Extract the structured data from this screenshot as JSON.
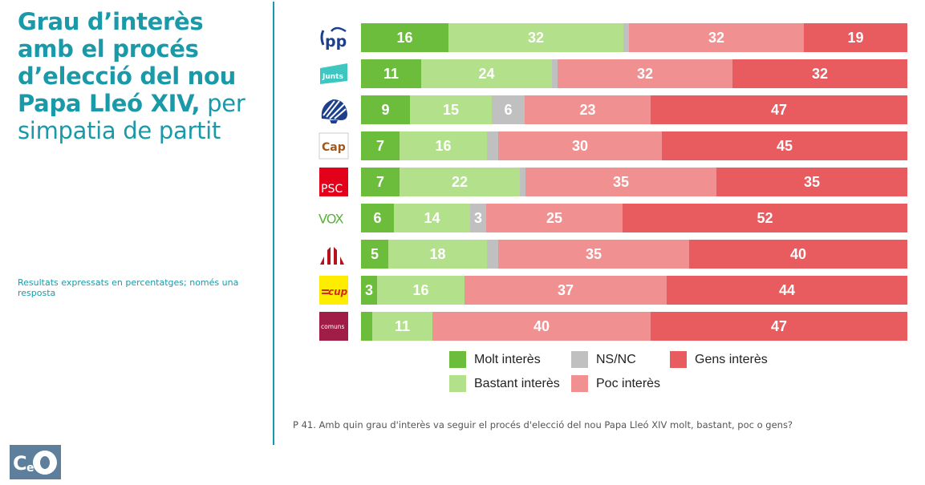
{
  "left_panel": {
    "title_bold": "Grau d’interès amb el procés d’elecció del nou Papa Lleó XIV,",
    "title_regular": "per simpatia de partit",
    "title_lines": [
      {
        "bold": "Grau d’interès",
        "regular": ""
      },
      {
        "bold": "amb el procés",
        "regular": ""
      },
      {
        "bold": "d’elecció del nou",
        "regular": ""
      },
      {
        "bold": "Papa Lleó XIV,",
        "regular": " per"
      },
      {
        "bold": "",
        "regular": "simpatia de partit"
      }
    ],
    "note": "Resultats expressats en percentatges; només una resposta",
    "brand_logo": "CEO"
  },
  "colors": {
    "accent": "#1a9aa8",
    "molt": "#6cbd3c",
    "bastant": "#b3e08a",
    "nsnc": "#c0c0c0",
    "poc": "#f09090",
    "gens": "#e85b5e",
    "ceo_bg": "#5d7f9c"
  },
  "chart_data": {
    "type": "bar",
    "orientation": "horizontal",
    "stacked": true,
    "title": "Grau d’interès amb el procés d’elecció del nou Papa Lleó XIV, per simpatia de partit",
    "xlabel": "",
    "ylabel": "",
    "xlim": [
      0,
      100
    ],
    "grid": false,
    "legend_position": "bottom",
    "categories": [
      "PP",
      "Junts",
      "Aliança Catalana",
      "Cap",
      "PSC",
      "VOX",
      "ERC",
      "CUP",
      "Comuns"
    ],
    "category_logos": [
      "pp-logo",
      "junts-logo",
      "alianca-catalana-logo",
      "cap-logo",
      "psc-logo",
      "vox-logo",
      "erc-logo",
      "cup-logo",
      "comuns-logo"
    ],
    "series": [
      {
        "name": "Molt interès",
        "color": "#6cbd3c",
        "values": [
          16,
          11,
          9,
          7,
          7,
          6,
          5,
          3,
          2
        ],
        "labels": [
          "16",
          "11",
          "9",
          "7",
          "7",
          "6",
          "5",
          "3",
          ""
        ]
      },
      {
        "name": "Bastant interès",
        "color": "#b3e08a",
        "values": [
          32,
          24,
          15,
          16,
          22,
          14,
          18,
          16,
          11
        ],
        "labels": [
          "32",
          "24",
          "15",
          "16",
          "22",
          "14",
          "18",
          "16",
          "11"
        ]
      },
      {
        "name": "NS/NC",
        "color": "#c0c0c0",
        "values": [
          1,
          1,
          6,
          2,
          1,
          3,
          2,
          0,
          0
        ],
        "labels": [
          "",
          "",
          "6",
          "",
          "",
          "3",
          "",
          "",
          ""
        ]
      },
      {
        "name": "Poc interès",
        "color": "#f09090",
        "values": [
          32,
          32,
          23,
          30,
          35,
          25,
          35,
          37,
          40
        ],
        "labels": [
          "32",
          "32",
          "23",
          "30",
          "35",
          "25",
          "35",
          "37",
          "40"
        ]
      },
      {
        "name": "Gens interès",
        "color": "#e85b5e",
        "values": [
          19,
          32,
          47,
          45,
          35,
          52,
          40,
          44,
          47
        ],
        "labels": [
          "19",
          "32",
          "47",
          "45",
          "35",
          "52",
          "40",
          "44",
          "47"
        ]
      }
    ],
    "legend": [
      {
        "label": "Molt interès",
        "color": "#6cbd3c"
      },
      {
        "label": "NS/NC",
        "color": "#c0c0c0"
      },
      {
        "label": "Gens interès",
        "color": "#e85b5e"
      },
      {
        "label": "Bastant interès",
        "color": "#b3e08a"
      },
      {
        "label": "Poc interès",
        "color": "#f09090"
      }
    ],
    "footnote": "P 41. Amb quin grau d'interès va seguir el procés d'elecció del nou Papa Lleó XIV molt, bastant, poc o gens?"
  },
  "logos": {
    "pp": "pp",
    "junts": "Junts",
    "cap": "Cap",
    "psc": "PSC",
    "vox": "VOX",
    "cup": "cup",
    "comuns": "comuns"
  }
}
